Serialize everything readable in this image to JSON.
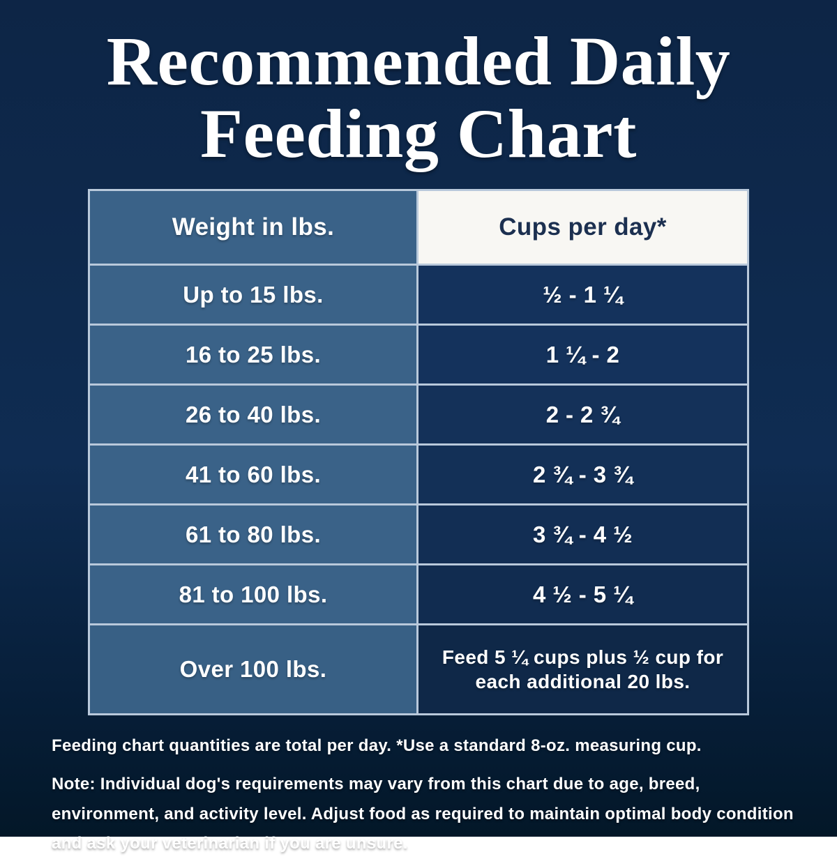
{
  "page": {
    "title_line1": "Recommended Daily",
    "title_line2": "Feeding Chart"
  },
  "table": {
    "headers": [
      "Weight in lbs.",
      "Cups per day*"
    ],
    "rows": [
      {
        "weight": "Up to 15 lbs.",
        "cups": "½ - 1 ¼"
      },
      {
        "weight": "16 to 25 lbs.",
        "cups": "1 ¼ - 2"
      },
      {
        "weight": "26 to 40 lbs.",
        "cups": "2 - 2 ¾"
      },
      {
        "weight": "41 to 60 lbs.",
        "cups": "2 ¾ - 3 ¾"
      },
      {
        "weight": "61 to 80 lbs.",
        "cups": "3 ¾ - 4 ½"
      },
      {
        "weight": "81 to 100 lbs.",
        "cups": "4 ½ - 5 ¼"
      },
      {
        "weight": "Over 100 lbs.",
        "cups": "Feed 5 ¼ cups plus ½ cup for each additional 20 lbs."
      }
    ]
  },
  "footnotes": {
    "measuring": "Feeding chart quantities are total per day. *Use a standard 8-oz. measuring cup.",
    "note": "Note: Individual dog's requirements may vary from this chart due to age, breed, environment, and activity level. Adjust food as required to maintain optimal body condition and ask your veterinarian if you are unsure."
  },
  "colors": {
    "background_top": "#0d2546",
    "background_mid": "#0f2c52",
    "background_bottom": "#031728",
    "steel_blue_cell": "#3a6288",
    "navy_cell": "#14325c",
    "header_white": "#f8f7f3",
    "header_text_navy": "#1c3050",
    "border_light": "#b9c9db",
    "text_white": "#ffffff"
  },
  "chart_data": {
    "type": "table",
    "title": "Recommended Daily Feeding Chart",
    "columns": [
      "Weight in lbs.",
      "Cups per day*"
    ],
    "rows": [
      [
        "Up to 15 lbs.",
        "½ - 1 ¼"
      ],
      [
        "16 to 25 lbs.",
        "1 ¼ - 2"
      ],
      [
        "26 to 40 lbs.",
        "2 - 2 ¾"
      ],
      [
        "41 to 60 lbs.",
        "2 ¾ - 3 ¾"
      ],
      [
        "61 to 80 lbs.",
        "3 ¾ - 4 ½"
      ],
      [
        "81 to 100 lbs.",
        "4 ½ - 5 ¼"
      ],
      [
        "Over 100 lbs.",
        "Feed 5 ¼ cups plus ½ cup for each additional 20 lbs."
      ]
    ],
    "notes": [
      "Feeding chart quantities are total per day. *Use a standard 8-oz. measuring cup.",
      "Note: Individual dog's requirements may vary from this chart due to age, breed, environment, and activity level. Adjust food as required to maintain optimal body condition and ask your veterinarian if you are unsure."
    ]
  }
}
